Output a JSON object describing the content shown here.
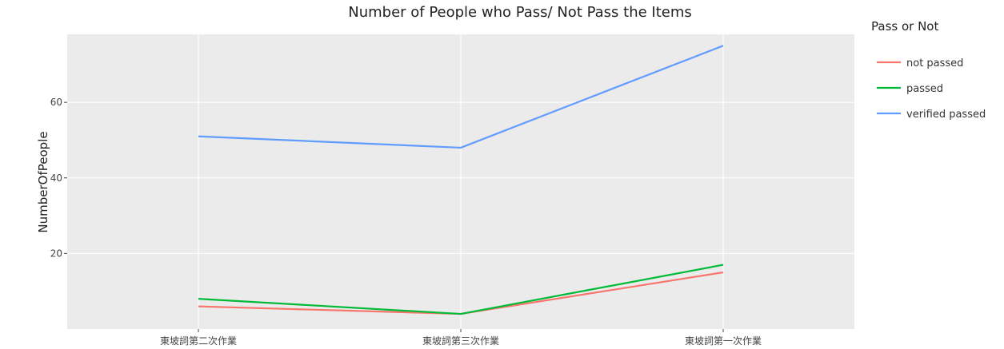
{
  "chart_data": {
    "type": "line",
    "title": "Number of People who Pass/ Not Pass the Items",
    "xlabel": "",
    "ylabel": "NumberOfPeople",
    "categories": [
      "東坡詞第二次作業",
      "東坡詞第三次作業",
      "東坡詞第一次作業"
    ],
    "ylim": [
      0,
      78
    ],
    "yticks": [
      20,
      40,
      60
    ],
    "grid": true,
    "legend_title": "Pass or Not",
    "legend_position": "right",
    "series": [
      {
        "name": "not passed",
        "color": "#F8766D",
        "values": [
          6,
          4,
          15
        ]
      },
      {
        "name": "passed",
        "color": "#00BA38",
        "values": [
          8,
          4,
          17
        ]
      },
      {
        "name": "verified passed",
        "color": "#619CFF",
        "values": [
          51,
          48,
          75
        ]
      }
    ]
  }
}
